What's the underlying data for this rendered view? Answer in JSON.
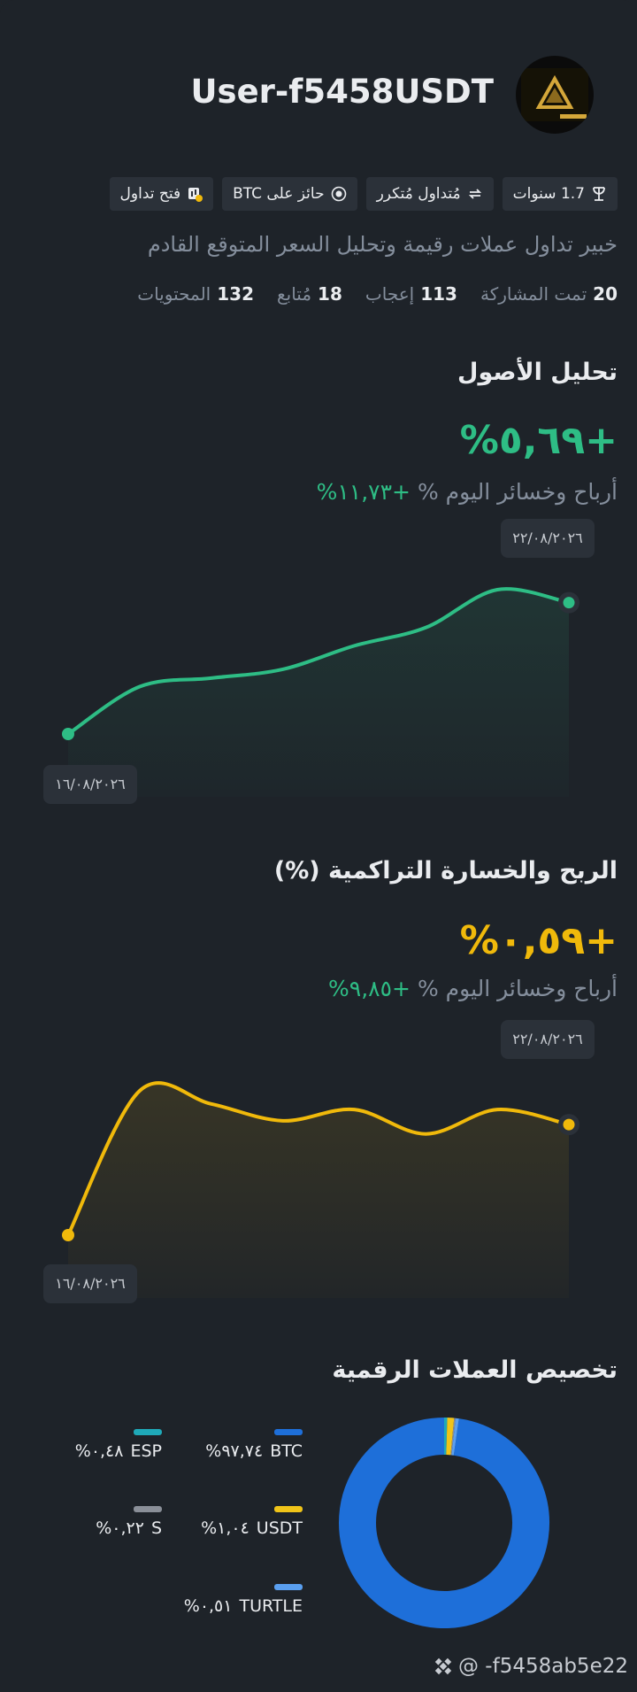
{
  "profile": {
    "username": "User-f5458USDT",
    "tags": [
      "1.7 سنوات",
      "مُتداول مُتكرر",
      "حائز على BTC",
      "فتح تداول"
    ],
    "bio": "خبير تداول عملات رقيمة وتحليل السعر المتوقع القادم",
    "stats": [
      {
        "value": 20,
        "label": "تمت المشاركة"
      },
      {
        "value": 113,
        "label": "إعجاب"
      },
      {
        "value": 18,
        "label": "مُتابع"
      },
      {
        "value": 132,
        "label": "المحتويات"
      }
    ]
  },
  "chart_data": [
    {
      "type": "line",
      "title": "تحليل الأصول",
      "headline": "%٥,٦٩+",
      "subtitle": "أرباح وخسائر اليوم %",
      "subtitle_value": "%١١,٧٣+",
      "start_label": "١٦/٠٨/٢٠٢٦",
      "end_label": "٢٢/٠٨/٢٠٢٦",
      "color": "#2ebd85",
      "values": [
        0,
        2.05,
        2.42,
        2.8,
        3.82,
        4.61,
        6.25,
        5.69
      ]
    },
    {
      "type": "line",
      "title": "الربح والخسارة التراكمية (%)",
      "headline": "%٠,٥٩+",
      "subtitle": "أرباح وخسائر اليوم %",
      "subtitle_value": "%٩,٨٥+",
      "start_label": "١٦/٠٨/٢٠٢٦",
      "end_label": "٢٢/٠٨/٢٠٢٦",
      "color": "#f0b90b",
      "values": [
        0,
        0.77,
        0.7,
        0.61,
        0.67,
        0.54,
        0.67,
        0.59
      ]
    },
    {
      "type": "donut",
      "title": "تخصيص العملات الرقمية",
      "categories": [
        "BTC",
        "ESP",
        "USDT",
        "S",
        "TURTLE"
      ],
      "values": [
        97.74,
        0.48,
        1.04,
        0.22,
        0.51
      ],
      "value_labels": [
        "%٩٧,٧٤",
        "%٠,٤٨",
        "%١,٠٤",
        "%٠,٢٢",
        "%٠,٥١"
      ],
      "colors": [
        "#1e6fd9",
        "#1fa9b8",
        "#f0c419",
        "#8a8f98",
        "#5a9ff0"
      ]
    }
  ],
  "footer": "@ -f5458ab5e22"
}
